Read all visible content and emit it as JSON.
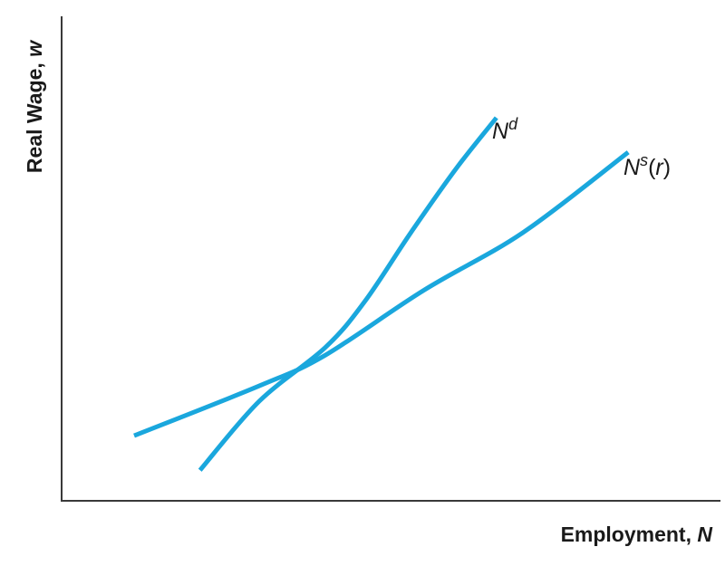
{
  "chart_data": {
    "type": "line",
    "title": "",
    "xlabel": {
      "text": "Employment, ",
      "var": "N"
    },
    "ylabel": {
      "text": "Real Wage, ",
      "var": "w"
    },
    "xlim": [
      0,
      100
    ],
    "ylim": [
      0,
      100
    ],
    "grid": false,
    "legend": "none",
    "ticks_shown": false,
    "color": "#1aa7dd",
    "series": [
      {
        "name": "Nd",
        "label": {
          "base": "N",
          "sup": "d",
          "suffix": ""
        },
        "x": [
          21,
          30,
          40,
          46,
          53,
          60,
          66
        ],
        "y": [
          8,
          26,
          40,
          52,
          70,
          87,
          100
        ]
      },
      {
        "name": "Ns(r)",
        "label": {
          "base": "N",
          "sup": "s",
          "suffix_open": "(",
          "suffix_var": "r",
          "suffix_close": ")"
        },
        "x": [
          11,
          30,
          40,
          55,
          70,
          86
        ],
        "y": [
          17,
          30,
          38,
          55,
          70,
          91
        ]
      }
    ]
  }
}
